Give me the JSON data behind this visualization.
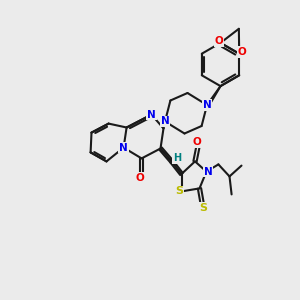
{
  "bg_color": "#ebebeb",
  "bond_color": "#1a1a1a",
  "N_color": "#0000ee",
  "O_color": "#ee0000",
  "S_color": "#bbbb00",
  "H_color": "#008080",
  "line_width": 1.5,
  "fig_width": 3.0,
  "fig_height": 3.0,
  "dpi": 100,
  "xlim": [
    0,
    10
  ],
  "ylim": [
    0,
    10
  ]
}
